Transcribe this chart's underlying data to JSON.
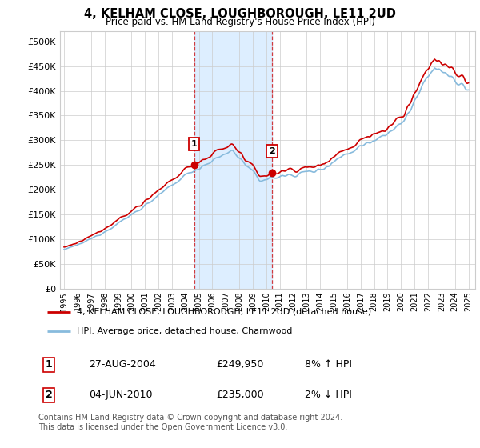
{
  "title": "4, KELHAM CLOSE, LOUGHBOROUGH, LE11 2UD",
  "subtitle": "Price paid vs. HM Land Registry's House Price Index (HPI)",
  "ylabel_ticks": [
    "£0",
    "£50K",
    "£100K",
    "£150K",
    "£200K",
    "£250K",
    "£300K",
    "£350K",
    "£400K",
    "£450K",
    "£500K"
  ],
  "ytick_vals": [
    0,
    50000,
    100000,
    150000,
    200000,
    250000,
    300000,
    350000,
    400000,
    450000,
    500000
  ],
  "ylim": [
    0,
    520000
  ],
  "sale1_year": 2004.65,
  "sale1_price": 249950,
  "sale2_year": 2010.42,
  "sale2_price": 235000,
  "line_color_red": "#cc0000",
  "line_color_blue": "#88bbdd",
  "shade_color": "#ddeeff",
  "marker_box_color": "#cc0000",
  "legend_label_red": "4, KELHAM CLOSE, LOUGHBOROUGH, LE11 2UD (detached house)",
  "legend_label_blue": "HPI: Average price, detached house, Charnwood",
  "table_row1": [
    "1",
    "27-AUG-2004",
    "£249,950",
    "8% ↑ HPI"
  ],
  "table_row2": [
    "2",
    "04-JUN-2010",
    "£235,000",
    "2% ↓ HPI"
  ],
  "footer": "Contains HM Land Registry data © Crown copyright and database right 2024.\nThis data is licensed under the Open Government Licence v3.0.",
  "bg_color": "#ffffff",
  "grid_color": "#cccccc"
}
